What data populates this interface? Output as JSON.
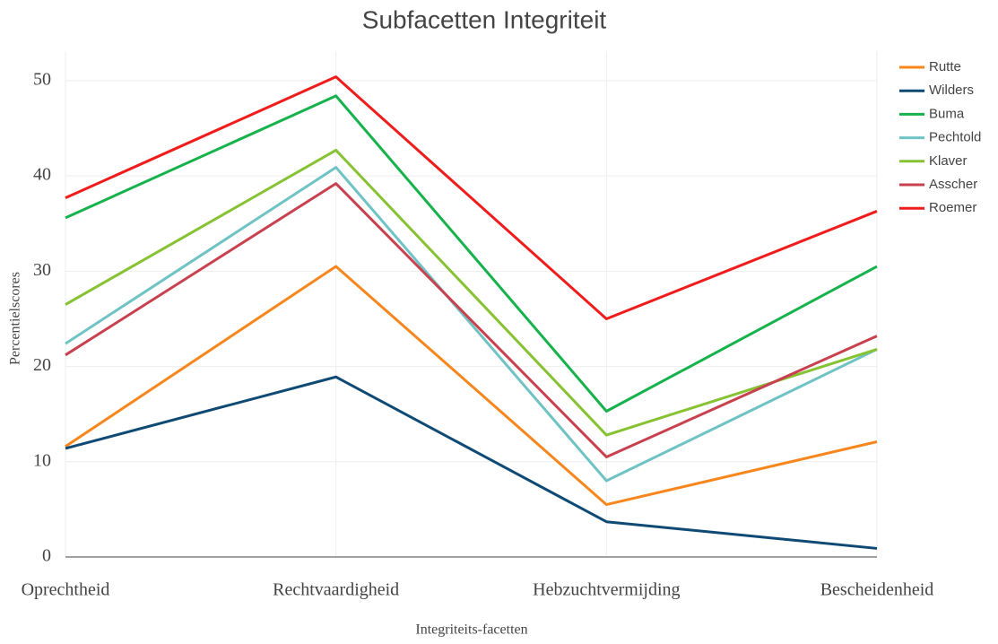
{
  "chart_data": {
    "type": "line",
    "title": "Subfacetten Integriteit",
    "x_label": "Integriteits-facetten",
    "y_label": "Percentielscores",
    "categories": [
      "Oprechtheid",
      "Rechtvaardigheid",
      "Hebzuchtvermijding",
      "Bescheidenheid"
    ],
    "series": [
      {
        "name": "Rutte",
        "color": "#f7861c",
        "values": [
          11.6,
          30.5,
          5.5,
          12.1
        ]
      },
      {
        "name": "Wilders",
        "color": "#0e4a74",
        "values": [
          11.4,
          18.9,
          3.7,
          0.9
        ]
      },
      {
        "name": "Buma",
        "color": "#16b24b",
        "values": [
          35.6,
          48.4,
          15.3,
          30.5
        ]
      },
      {
        "name": "Pechtold",
        "color": "#6fc3c4",
        "values": [
          22.4,
          40.9,
          8.0,
          21.8
        ]
      },
      {
        "name": "Klaver",
        "color": "#86c232",
        "values": [
          26.5,
          42.7,
          12.8,
          21.8
        ]
      },
      {
        "name": "Asscher",
        "color": "#c9404f",
        "values": [
          21.2,
          39.2,
          10.5,
          23.2
        ]
      },
      {
        "name": "Roemer",
        "color": "#f01c1c",
        "values": [
          37.7,
          50.4,
          25.0,
          36.3
        ]
      }
    ],
    "ylim": [
      0,
      53.1
    ],
    "yticks": [
      0,
      10,
      20,
      30,
      40,
      50
    ],
    "grid": true,
    "legend": "top-right"
  }
}
